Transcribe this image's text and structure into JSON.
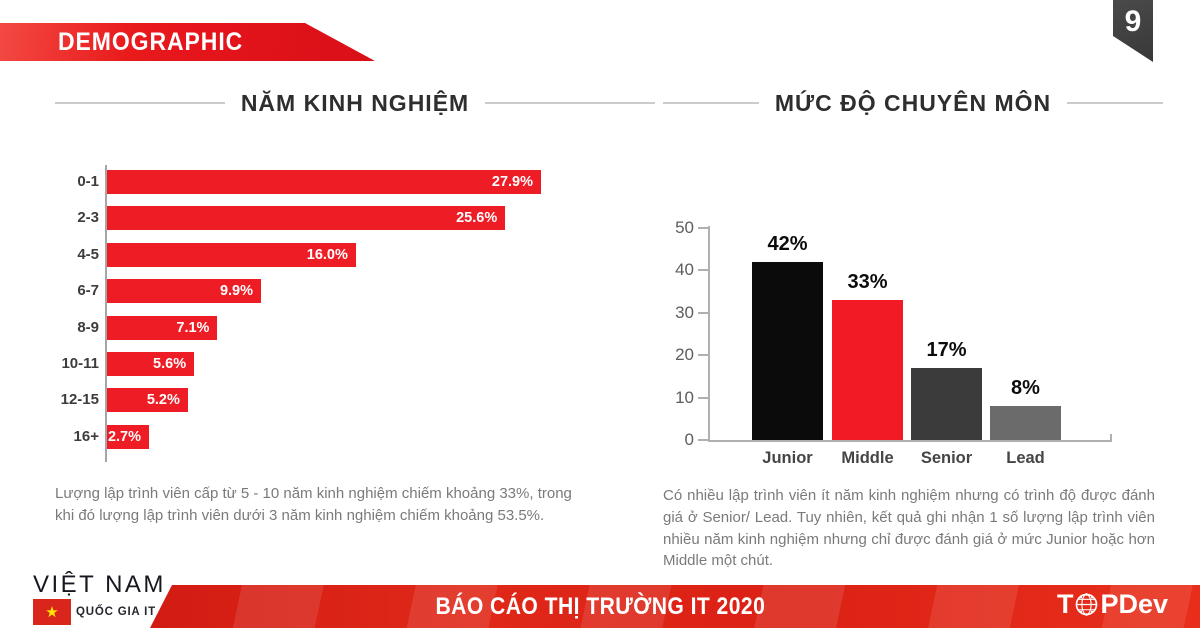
{
  "page_badge": {
    "number": "9"
  },
  "header": {
    "title": "DEMOGRAPHIC"
  },
  "chart_data": [
    {
      "type": "bar",
      "orientation": "horizontal",
      "title": "NĂM KINH NGHIỆM",
      "categories": [
        "0-1",
        "2-3",
        "4-5",
        "6-7",
        "8-9",
        "10-11",
        "12-15",
        "16+"
      ],
      "values": [
        27.9,
        25.6,
        16.0,
        9.9,
        7.1,
        5.6,
        5.2,
        2.7
      ],
      "value_labels": [
        "27.9%",
        "25.6%",
        "16.0%",
        "9.9%",
        "7.1%",
        "5.6%",
        "5.2%",
        "2.7%"
      ],
      "bar_color": "#ee1c25",
      "xlim": [
        0,
        28
      ],
      "grid": false,
      "note": "Lượng lập trình viên cấp từ 5 - 10 năm kinh nghiệm chiếm khoảng 33%, trong khi đó lượng lập trình viên dưới 3 năm kinh nghiệm chiếm khoảng 53.5%."
    },
    {
      "type": "bar",
      "orientation": "vertical",
      "title": "MỨC ĐỘ CHUYÊN MÔN",
      "categories": [
        "Junior",
        "Middle",
        "Senior",
        "Lead"
      ],
      "values": [
        42,
        33,
        17,
        8
      ],
      "value_labels": [
        "42%",
        "33%",
        "17%",
        "8%"
      ],
      "bar_colors": [
        "#0b0b0b",
        "#f21b25",
        "#3b3b3b",
        "#6b6b6b"
      ],
      "y_ticks": [
        0,
        10,
        20,
        30,
        40,
        50
      ],
      "ylim": [
        0,
        50
      ],
      "grid": false,
      "note": "Có nhiều lập trình viên ít năm kinh nghiệm nhưng có trình độ được đánh giá ở Senior/ Lead. Tuy nhiên, kết quả ghi nhận 1 số lượng lập trình viên nhiều năm kinh nghiệm nhưng chỉ được đánh giá ở mức Junior hoặc hơn Middle một chút."
    }
  ],
  "footer": {
    "report_title": "BÁO CÁO THỊ TRƯỜNG IT 2020",
    "country_logo": {
      "line1": "VIỆT NAM",
      "line2": "QUỐC GIA IT",
      "flag_star": "★"
    },
    "brand": {
      "name": "TOPDev",
      "prefix": "T",
      "suffix": "PDev"
    }
  },
  "colors": {
    "accent_red": "#ee1c25",
    "banner_red": "#e4141b",
    "footer_red": "#d81f17",
    "bookmark_gray": "#3f3f3f"
  }
}
